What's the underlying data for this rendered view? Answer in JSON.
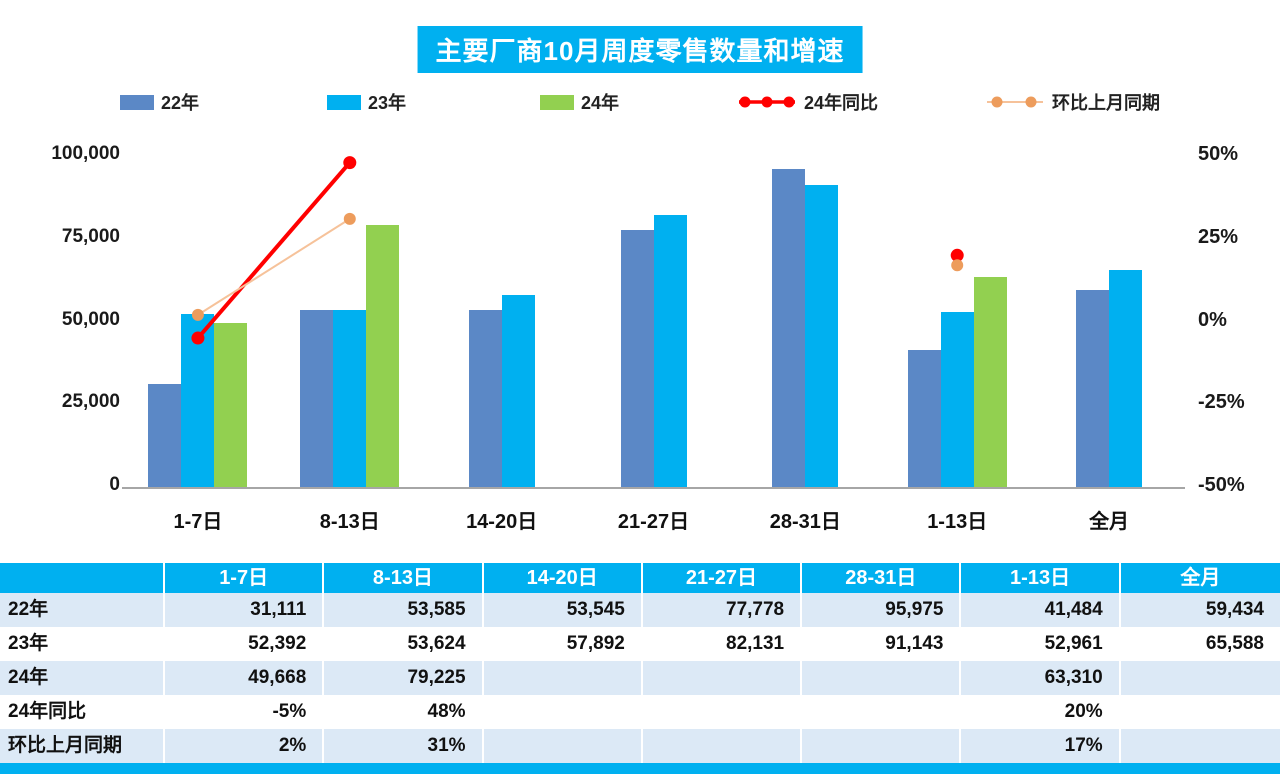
{
  "title": "主要厂商10月周度零售数量和增速",
  "legend": [
    {
      "key": "y22",
      "label": "22年",
      "type": "bar",
      "color": "#5B88C6"
    },
    {
      "key": "y23",
      "label": "23年",
      "type": "bar",
      "color": "#00B0F0"
    },
    {
      "key": "y24",
      "label": "24年",
      "type": "bar",
      "color": "#92D050"
    },
    {
      "key": "yoy",
      "label": "24年同比",
      "type": "line",
      "color": "#FF0000",
      "marker": "#FF0000"
    },
    {
      "key": "mom",
      "label": "环比上月同期",
      "type": "line",
      "color": "#F6C29A",
      "marker": "#ED9C5C"
    }
  ],
  "chart_data": {
    "type": "bar",
    "title": "主要厂商10月周度零售数量和增速",
    "categories": [
      "1-7日",
      "8-13日",
      "14-20日",
      "21-27日",
      "28-31日",
      "1-13日",
      "全月"
    ],
    "bar_series": [
      {
        "key": "y22",
        "name": "22年",
        "color": "#5B88C6",
        "values": [
          31111,
          53585,
          53545,
          77778,
          95975,
          41484,
          59434
        ]
      },
      {
        "key": "y23",
        "name": "23年",
        "color": "#00B0F0",
        "values": [
          52392,
          53624,
          57892,
          82131,
          91143,
          52961,
          65588
        ]
      },
      {
        "key": "y24",
        "name": "24年",
        "color": "#92D050",
        "values": [
          49668,
          79225,
          null,
          null,
          null,
          63310,
          null
        ]
      }
    ],
    "line_series": [
      {
        "key": "yoy",
        "name": "24年同比",
        "color": "#FF0000",
        "marker": "#FF0000",
        "values_pct": [
          -5,
          48,
          null,
          null,
          null,
          20,
          null
        ]
      },
      {
        "key": "mom",
        "name": "环比上月同期",
        "color": "#F6C29A",
        "marker": "#ED9C5C",
        "values_pct": [
          2,
          31,
          null,
          null,
          null,
          17,
          null
        ]
      }
    ],
    "left_axis": {
      "min": 0,
      "max": 100000,
      "ticks": [
        "100,000",
        "75,000",
        "50,000",
        "25,000",
        "0"
      ]
    },
    "right_axis": {
      "min": -50,
      "max": 50,
      "ticks": [
        "50%",
        "25%",
        "0%",
        "-25%",
        "-50%"
      ]
    },
    "grid": false,
    "legend_position": "top"
  },
  "table": {
    "header": [
      "1-7日",
      "8-13日",
      "14-20日",
      "21-27日",
      "28-31日",
      "1-13日",
      "全月"
    ],
    "rows": [
      {
        "label": "22年",
        "cells": [
          "31,111",
          "53,585",
          "53,545",
          "77,778",
          "95,975",
          "41,484",
          "59,434"
        ]
      },
      {
        "label": "23年",
        "cells": [
          "52,392",
          "53,624",
          "57,892",
          "82,131",
          "91,143",
          "52,961",
          "65,588"
        ]
      },
      {
        "label": "24年",
        "cells": [
          "49,668",
          "79,225",
          "",
          "",
          "",
          "63,310",
          ""
        ]
      },
      {
        "label": "24年同比",
        "cells": [
          "-5%",
          "48%",
          "",
          "",
          "",
          "20%",
          ""
        ]
      },
      {
        "label": "环比上月同期",
        "cells": [
          "2%",
          "31%",
          "",
          "",
          "",
          "17%",
          ""
        ]
      }
    ]
  }
}
